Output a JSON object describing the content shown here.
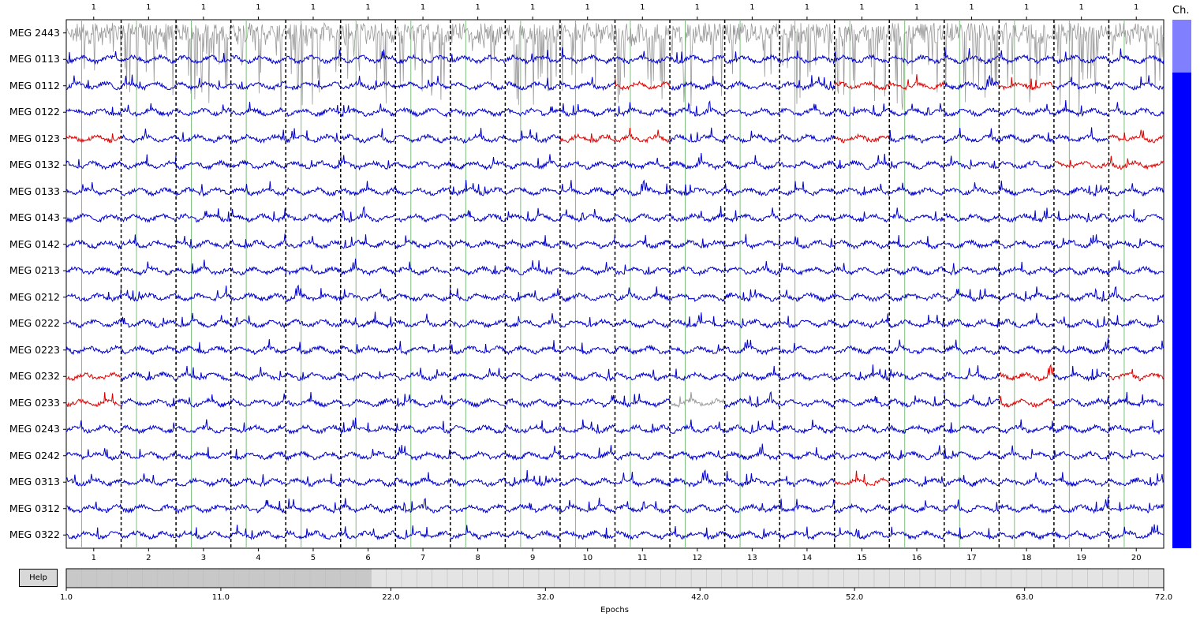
{
  "channel_bar_title": "Ch.",
  "help_label": "Help",
  "xlabel": "Epochs",
  "channels": [
    "MEG 2443",
    "MEG 0113",
    "MEG 0112",
    "MEG 0122",
    "MEG 0123",
    "MEG 0132",
    "MEG 0133",
    "MEG 0143",
    "MEG 0142",
    "MEG 0213",
    "MEG 0212",
    "MEG 0222",
    "MEG 0223",
    "MEG 0232",
    "MEG 0233",
    "MEG 0243",
    "MEG 0242",
    "MEG 0313",
    "MEG 0312",
    "MEG 0322"
  ],
  "epoch_ticks": [
    "1",
    "2",
    "3",
    "4",
    "5",
    "6",
    "7",
    "8",
    "9",
    "10",
    "11",
    "12",
    "13",
    "14",
    "15",
    "16",
    "17",
    "18",
    "19",
    "20"
  ],
  "event_labels": [
    "1",
    "1",
    "1",
    "1",
    "1",
    "1",
    "1",
    "1",
    "1",
    "1",
    "1",
    "1",
    "1",
    "1",
    "1",
    "1",
    "1",
    "1",
    "1",
    "1"
  ],
  "scroll_ticks": [
    "1.0",
    "11.0",
    "22.0",
    "32.0",
    "42.0",
    "52.0",
    "63.0",
    "72.0"
  ],
  "scrollbar": {
    "total_epochs": 72,
    "visible_start": 1,
    "visible_end": 20
  },
  "bad_channels": [
    "MEG 2443"
  ],
  "colors": {
    "trace": "#0000cc",
    "bad_trace": "#999999",
    "bad_epoch_segment": "#e00000",
    "epoch_divider": "#000000",
    "event_line": "#7dbf7d",
    "channel_bar_bad": "#8080ff",
    "channel_bar_good": "#0000ff",
    "scroll_visible": "#c8c8c8",
    "scroll_background": "#e4e4e4"
  },
  "highlights": [
    {
      "channel": 2,
      "epochs": [
        11,
        15,
        16,
        18
      ]
    },
    {
      "channel": 4,
      "epochs": [
        1,
        10,
        11,
        15,
        20
      ]
    },
    {
      "channel": 5,
      "epochs": [
        19,
        20
      ]
    },
    {
      "channel": 13,
      "epochs": [
        1,
        18,
        20
      ]
    },
    {
      "channel": 14,
      "epochs": [
        1,
        18
      ]
    },
    {
      "channel": 17,
      "epochs": [
        15
      ]
    }
  ],
  "grey_segments": [
    {
      "channel": 14,
      "epochs": [
        12
      ]
    }
  ]
}
